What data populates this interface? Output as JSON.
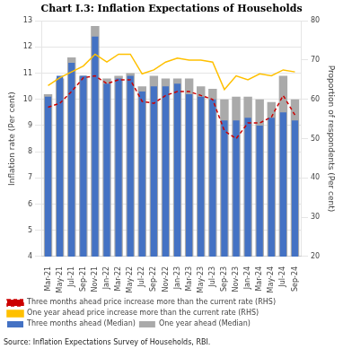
{
  "chart_data": {
    "type": "bar",
    "title": "Chart I.3: Inflation Expectations of Households",
    "ylabel": "Inflation rate (Per cent)",
    "y2label": "Proportion of respondents (Per cent)",
    "annotations": [
      "Source: Inflation Expectations Survey of Households, RBI."
    ],
    "categories": [
      "Mar-21",
      "May-21",
      "Jul-21",
      "Sep-21",
      "Nov-21",
      "Jan-22",
      "Mar-22",
      "May-22",
      "Jul-22",
      "Sep-22",
      "Nov-22",
      "Jan-23",
      "Mar-23",
      "May-23",
      "Jul-23",
      "Sep-23",
      "Nov-23",
      "Jan-24",
      "Mar-24",
      "May-24",
      "Jul-24",
      "Sep-24"
    ],
    "series": [
      {
        "name": "Three months ahead (Median)",
        "type": "bar",
        "color": "#4472C4",
        "axis": "y",
        "values": [
          10.1,
          10.9,
          11.4,
          10.9,
          12.4,
          10.6,
          10.8,
          10.9,
          10.3,
          10.5,
          10.5,
          10.6,
          10.2,
          10.1,
          10.0,
          9.2,
          9.2,
          9.3,
          9.0,
          9.3,
          9.5,
          9.2
        ]
      },
      {
        "name": "One year ahead (Median)",
        "type": "bar",
        "color": "#AAAAAA",
        "axis": "y",
        "values": [
          10.2,
          10.8,
          11.6,
          10.9,
          12.8,
          10.8,
          10.9,
          11.0,
          10.5,
          10.9,
          10.8,
          10.8,
          10.8,
          10.5,
          10.4,
          10.0,
          10.1,
          10.1,
          10.0,
          9.9,
          10.9,
          10.0
        ]
      },
      {
        "name": "Three months ahead price increase more than the current rate (RHS)",
        "type": "line",
        "color": "#CC0000",
        "line_style": "dashed",
        "axis": "y2",
        "values": [
          58.0,
          59.0,
          62.0,
          65.5,
          66.0,
          64.0,
          65.0,
          65.0,
          59.5,
          59.0,
          61.0,
          62.0,
          62.0,
          61.0,
          60.0,
          52.0,
          50.0,
          54.0,
          54.0,
          55.5,
          61.0,
          56.0
        ]
      },
      {
        "name": "One year ahead price increase more than the current rate (RHS)",
        "type": "line",
        "color": "#FFC000",
        "line_style": "solid",
        "axis": "y2",
        "values": [
          63.5,
          65.5,
          67.0,
          68.5,
          71.5,
          69.5,
          71.5,
          71.5,
          66.5,
          67.5,
          69.5,
          70.5,
          70.0,
          70.0,
          69.5,
          62.5,
          66.0,
          65.0,
          66.5,
          66.0,
          67.5,
          67.0
        ]
      }
    ],
    "ylim": [
      4,
      13
    ],
    "yticks": [
      4,
      5,
      6,
      7,
      8,
      9,
      10,
      11,
      12,
      13
    ],
    "y2lim": [
      20,
      80
    ],
    "y2ticks": [
      20,
      30,
      40,
      50,
      60,
      70,
      80
    ],
    "grid": true,
    "legend": "bottom"
  }
}
